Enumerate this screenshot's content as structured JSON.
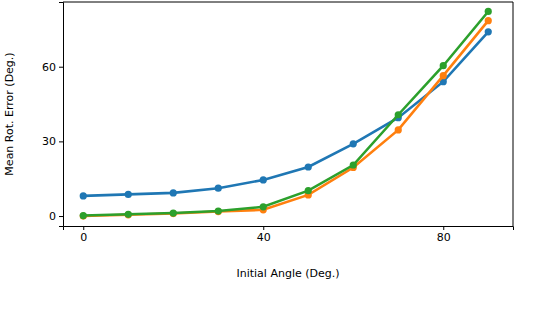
{
  "chart_data": {
    "type": "line",
    "x_label": "Initial Angle (Deg.)",
    "y_label": "Mean Rot. Error (Deg.)",
    "x": [
      0,
      10,
      20,
      30,
      40,
      50,
      60,
      70,
      80,
      90
    ],
    "series": [
      {
        "color": "#1f77b4",
        "marker": "circle",
        "values": [
          8.1,
          8.7,
          9.3,
          11.2,
          14.5,
          19.7,
          29,
          39.5,
          54,
          74
        ]
      },
      {
        "color": "#ff7f0e",
        "marker": "circle",
        "values": [
          0,
          0.5,
          1,
          1.8,
          2.5,
          8.5,
          19.5,
          34.6,
          56.4,
          78.5
        ]
      },
      {
        "color": "#2ca02c",
        "marker": "circle",
        "values": [
          0.2,
          0.7,
          1.2,
          2,
          3.7,
          10.2,
          20.5,
          40.7,
          60.4,
          82.2
        ]
      }
    ],
    "xlim": [
      -4.5,
      95.5
    ],
    "ylim": [
      -4,
      86
    ],
    "xticks": [
      0,
      40,
      80
    ],
    "yticks": [
      0,
      30,
      60
    ],
    "grid": false
  }
}
